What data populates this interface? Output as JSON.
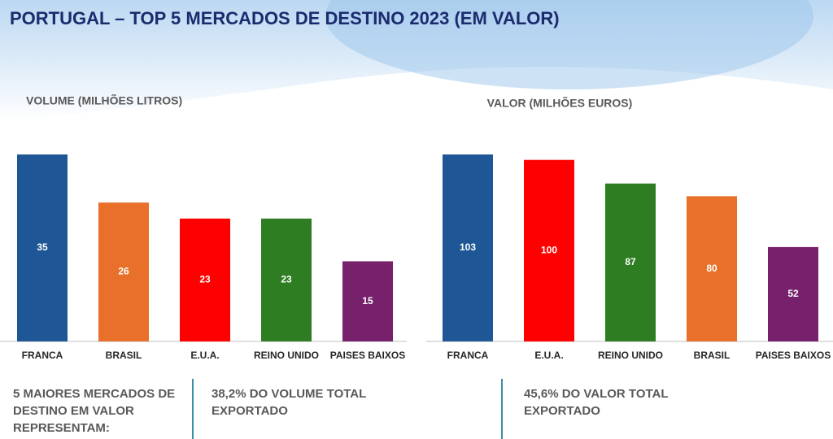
{
  "title": "PORTUGAL – TOP 5 MERCADOS DE DESTINO 2023 (EM VALOR)",
  "chart_data": [
    {
      "type": "bar",
      "title": "VOLUME (MILHÕES LITROS)",
      "categories": [
        "FRANCA",
        "BRASIL",
        "E.U.A.",
        "REINO UNIDO",
        "PAISES BAIXOS"
      ],
      "values": [
        35,
        26,
        23,
        23,
        15
      ],
      "colors": [
        "#1f5696",
        "#e8702a",
        "#ff0000",
        "#2e7d22",
        "#77206b"
      ]
    },
    {
      "type": "bar",
      "title": "VALOR (MILHÕES EUROS)",
      "categories": [
        "FRANCA",
        "E.U.A.",
        "REINO UNIDO",
        "BRASIL",
        "PAISES BAIXOS"
      ],
      "values": [
        103,
        100,
        87,
        80,
        52
      ],
      "colors": [
        "#1f5696",
        "#ff0000",
        "#2e7d22",
        "#e8702a",
        "#77206b"
      ]
    }
  ],
  "footer": {
    "intro": "5 MAIORES MERCADOS DE DESTINO EM VALOR REPRESENTAM:",
    "volume": "38,2% DO VOLUME TOTAL EXPORTADO",
    "value": "45,6% DO VALOR TOTAL EXPORTADO"
  }
}
